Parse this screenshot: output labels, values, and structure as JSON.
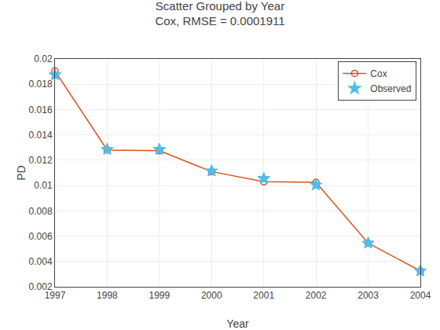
{
  "chart_data": {
    "type": "line",
    "title": "Scatter Grouped by Year",
    "subtitle": "Cox, RMSE = 0.0001911",
    "x_label": "Year",
    "y_label": "PD",
    "x": [
      1997,
      1998,
      1999,
      2000,
      2001,
      2002,
      2003,
      2004
    ],
    "series": [
      {
        "name": "Cox",
        "type": "line",
        "color": "#D95319",
        "marker": "circle-open",
        "line_style": "solid",
        "values": [
          0.01905,
          0.0128,
          0.01275,
          0.0111,
          0.0103,
          0.01025,
          0.00545,
          0.00325
        ]
      },
      {
        "name": "Observed",
        "type": "scatter",
        "color": "#4DBEEE",
        "marker": "star",
        "line_style": "none",
        "values": [
          0.01875,
          0.01285,
          0.01285,
          0.01115,
          0.01055,
          0.01005,
          0.00545,
          0.00325
        ]
      }
    ],
    "xlim": [
      1997,
      2004
    ],
    "xticks": [
      1997,
      1998,
      1999,
      2000,
      2001,
      2002,
      2003,
      2004
    ],
    "ylim": [
      0.002,
      0.02
    ],
    "yticks": [
      0.002,
      0.004,
      0.006,
      0.008,
      0.01,
      0.012,
      0.014,
      0.016,
      0.018,
      0.02
    ],
    "grid": true,
    "legend": "upper right"
  }
}
